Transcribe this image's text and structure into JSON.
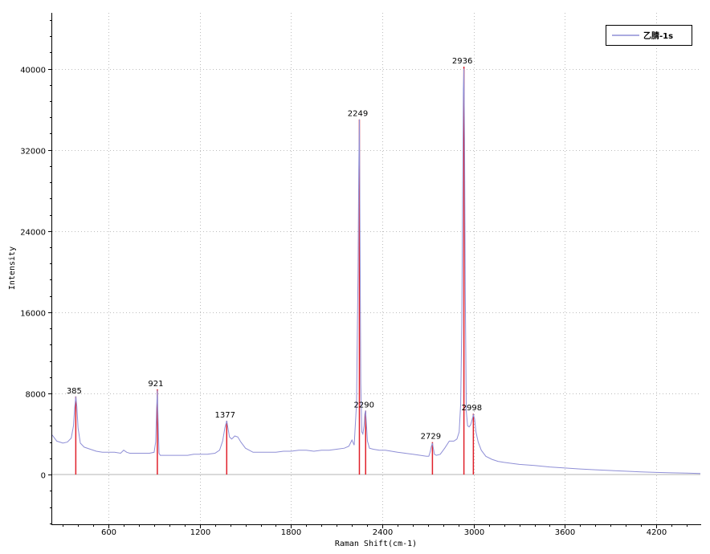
{
  "chart_data": {
    "type": "line",
    "title": "",
    "xlabel": "Raman Shift(cm-1)",
    "ylabel": "Intensity",
    "xlim": [
      230,
      4490
    ],
    "ylim": [
      -4900,
      45500
    ],
    "x_ticks": [
      600,
      1200,
      1800,
      2400,
      3000,
      3600,
      4200
    ],
    "y_ticks": [
      0,
      8000,
      16000,
      24000,
      32000,
      40000
    ],
    "grid": true,
    "legend_position": "top-right",
    "colors": {
      "spectrum": "#8f8fd6",
      "peak_marker": "#e0202a",
      "grid": "#bdbdbd",
      "zero_line": "#b4b4b4"
    },
    "series": [
      {
        "name": "乙腈-1s",
        "x": [
          230,
          260,
          300,
          330,
          355,
          370,
          378,
          385,
          392,
          400,
          415,
          440,
          480,
          520,
          560,
          600,
          640,
          680,
          700,
          720,
          740,
          760,
          790,
          830,
          870,
          900,
          910,
          916,
          921,
          926,
          932,
          940,
          960,
          1000,
          1040,
          1080,
          1120,
          1160,
          1200,
          1250,
          1300,
          1330,
          1350,
          1365,
          1377,
          1385,
          1395,
          1410,
          1430,
          1450,
          1470,
          1500,
          1550,
          1600,
          1650,
          1700,
          1750,
          1800,
          1850,
          1900,
          1950,
          2000,
          2050,
          2100,
          2150,
          2180,
          2200,
          2215,
          2230,
          2240,
          2245,
          2249,
          2253,
          2258,
          2265,
          2272,
          2280,
          2285,
          2290,
          2295,
          2302,
          2315,
          2340,
          2380,
          2420,
          2460,
          2500,
          2550,
          2600,
          2650,
          2690,
          2705,
          2715,
          2722,
          2729,
          2735,
          2742,
          2755,
          2780,
          2810,
          2840,
          2870,
          2890,
          2905,
          2915,
          2922,
          2928,
          2932,
          2936,
          2940,
          2945,
          2952,
          2960,
          2970,
          2980,
          2990,
          2998,
          3006,
          3015,
          3030,
          3050,
          3080,
          3120,
          3160,
          3200,
          3300,
          3400,
          3500,
          3600,
          3700,
          3800,
          3900,
          4000,
          4100,
          4200,
          4300,
          4400,
          4490
        ],
        "values": [
          3900,
          3300,
          3100,
          3200,
          3600,
          4800,
          6600,
          7700,
          6700,
          4600,
          3100,
          2700,
          2500,
          2300,
          2200,
          2200,
          2200,
          2100,
          2400,
          2200,
          2100,
          2100,
          2100,
          2100,
          2100,
          2200,
          3200,
          6500,
          8300,
          5500,
          2100,
          1900,
          1900,
          1900,
          1900,
          1900,
          1900,
          2000,
          2000,
          2000,
          2100,
          2400,
          3300,
          4600,
          5300,
          4600,
          3700,
          3500,
          3800,
          3700,
          3200,
          2600,
          2200,
          2200,
          2200,
          2200,
          2300,
          2300,
          2400,
          2400,
          2300,
          2400,
          2400,
          2500,
          2600,
          2800,
          3400,
          2900,
          7000,
          20000,
          30000,
          35000,
          24000,
          9000,
          4200,
          4000,
          4800,
          6000,
          6300,
          5000,
          3300,
          2600,
          2500,
          2400,
          2400,
          2300,
          2200,
          2100,
          2000,
          1900,
          1800,
          1800,
          2300,
          2800,
          3100,
          2600,
          2000,
          1900,
          2000,
          2600,
          3300,
          3300,
          3500,
          4200,
          7000,
          15000,
          28000,
          38000,
          40000,
          33000,
          18000,
          6200,
          4800,
          4700,
          4900,
          5400,
          5900,
          5500,
          4200,
          3200,
          2400,
          1800,
          1500,
          1300,
          1200,
          1000,
          900,
          750,
          650,
          550,
          470,
          400,
          330,
          270,
          210,
          170,
          140,
          100
        ]
      }
    ],
    "peaks": [
      {
        "x": 385,
        "y": 7700,
        "label": "385"
      },
      {
        "x": 921,
        "y": 8400,
        "label": "921"
      },
      {
        "x": 1377,
        "y": 5300,
        "label": "1377"
      },
      {
        "x": 2249,
        "y": 35000,
        "label": "2249"
      },
      {
        "x": 2290,
        "y": 6300,
        "label": "2290"
      },
      {
        "x": 2729,
        "y": 3200,
        "label": "2729"
      },
      {
        "x": 2936,
        "y": 40200,
        "label": "2936"
      },
      {
        "x": 2998,
        "y": 6000,
        "label": "2998"
      }
    ]
  }
}
